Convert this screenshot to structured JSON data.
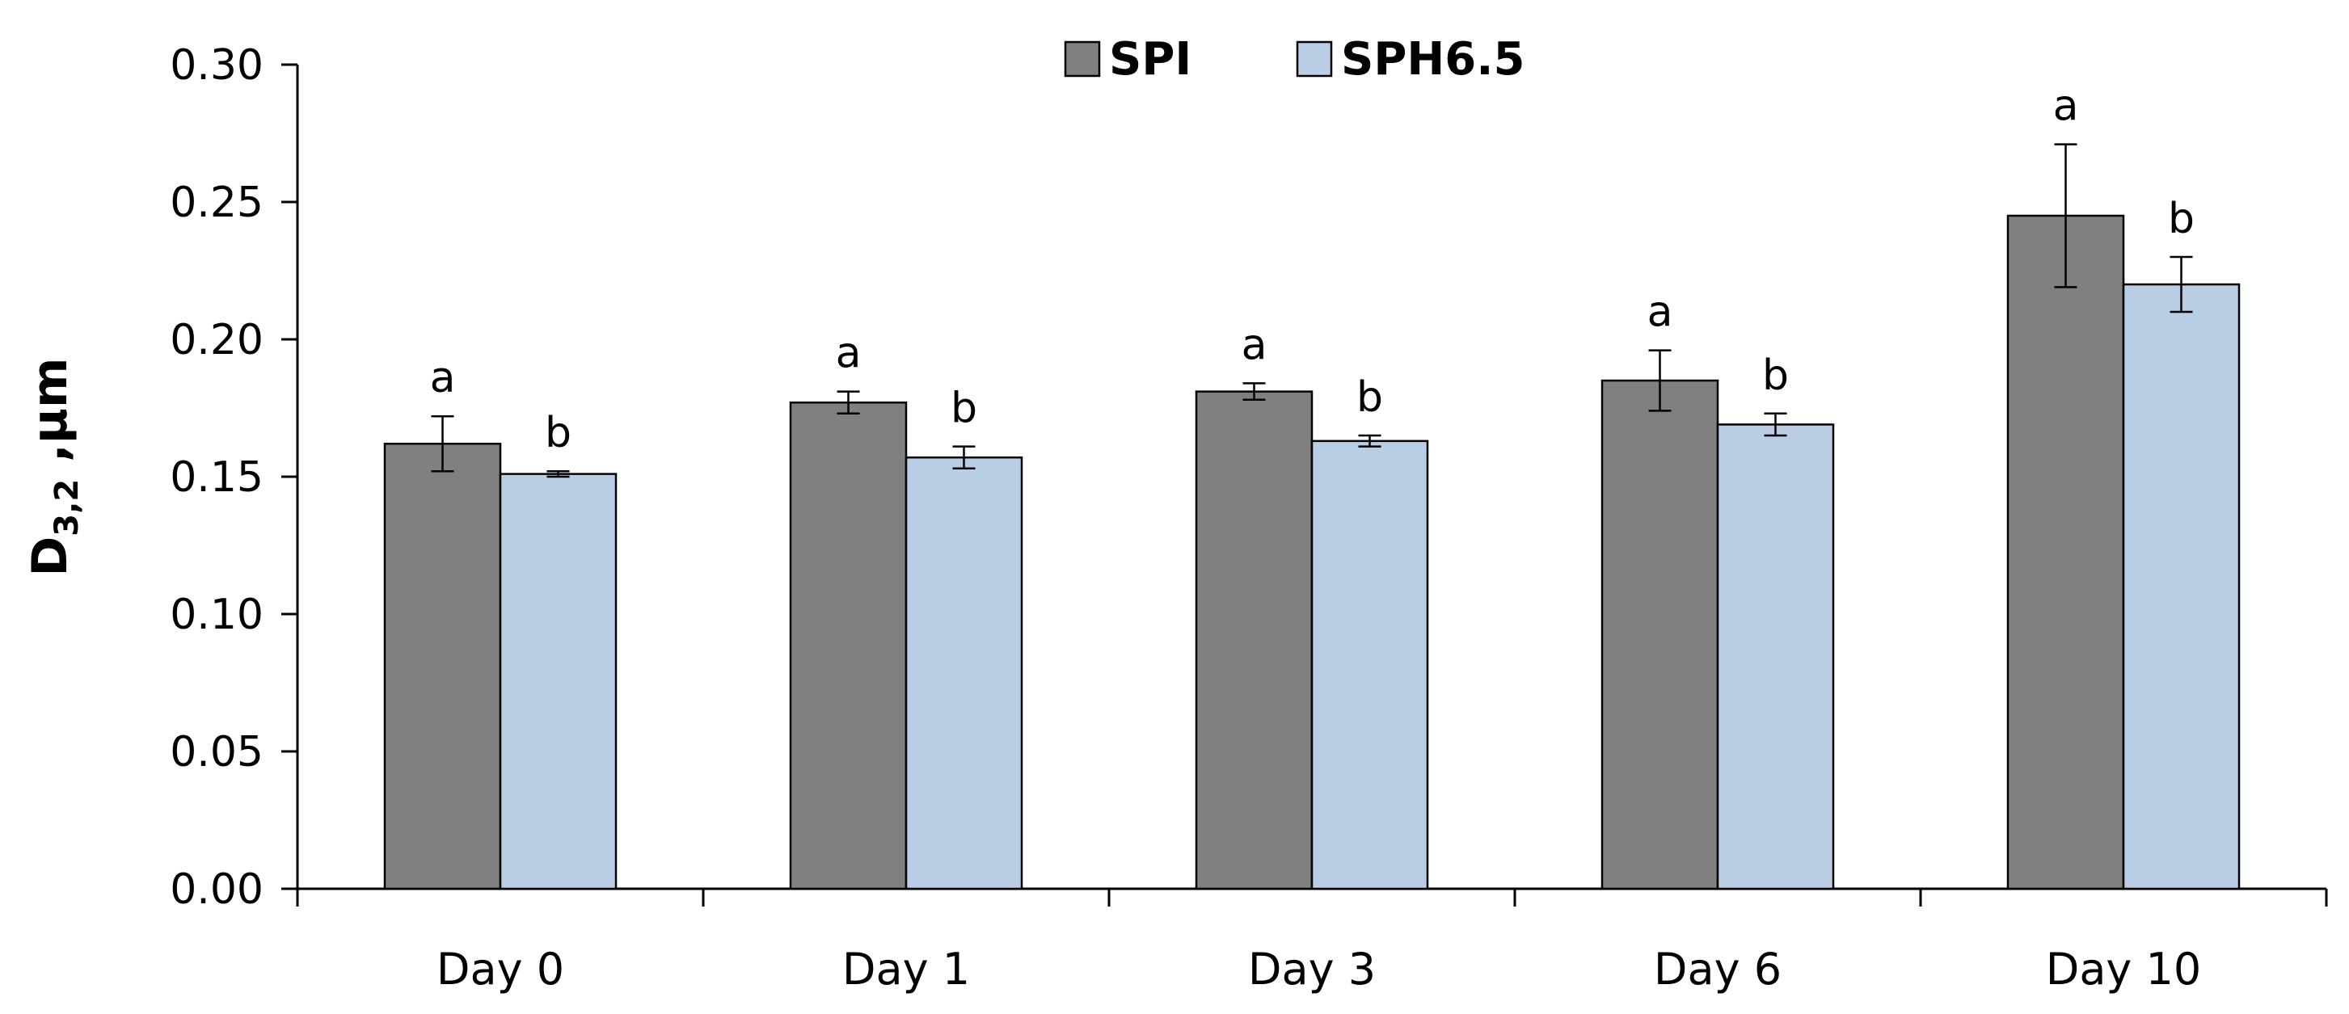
{
  "chart_data": {
    "type": "bar",
    "categories": [
      "Day 0",
      "Day 1",
      "Day 3",
      "Day 6",
      "Day 10"
    ],
    "series": [
      {
        "name": "SPI",
        "color": "#808080",
        "values": [
          0.162,
          0.177,
          0.181,
          0.185,
          0.245
        ],
        "errors": [
          0.01,
          0.004,
          0.003,
          0.011,
          0.026
        ],
        "labels": [
          "a",
          "a",
          "a",
          "a",
          "a"
        ]
      },
      {
        "name": "SPH6.5",
        "color": "#b9cde5",
        "values": [
          0.151,
          0.157,
          0.163,
          0.169,
          0.22
        ],
        "errors": [
          0.001,
          0.004,
          0.002,
          0.004,
          0.01
        ],
        "labels": [
          "b",
          "b",
          "b",
          "b",
          "b"
        ]
      }
    ],
    "ylabel_main": "D",
    "ylabel_sub": "3,2",
    "ylabel_unit": " ,µm",
    "ylim": [
      0,
      0.3
    ],
    "yticks": [
      "0.00",
      "0.05",
      "0.10",
      "0.15",
      "0.20",
      "0.25",
      "0.30"
    ],
    "grid": false,
    "legend_position": "top-center"
  }
}
